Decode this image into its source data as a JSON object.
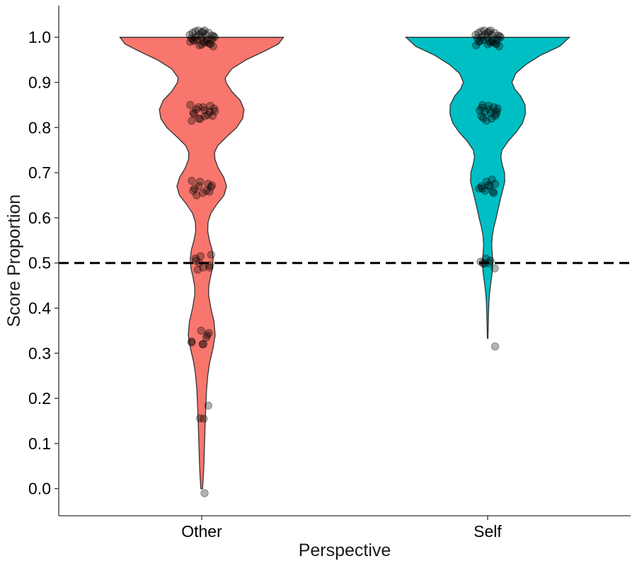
{
  "chart_data": {
    "type": "violin",
    "xlabel": "Perspective",
    "ylabel": "Score Proportion",
    "categories": [
      "Other",
      "Self"
    ],
    "ylim": [
      -0.06,
      1.07
    ],
    "yticks": [
      "0.0",
      "0.1",
      "0.2",
      "0.3",
      "0.4",
      "0.5",
      "0.6",
      "0.7",
      "0.8",
      "0.9",
      "1.0"
    ],
    "reference_line": {
      "y": 0.5,
      "style": "dashed",
      "color": "#000000"
    },
    "grid": false,
    "legend": "none",
    "series": [
      {
        "category": "Other",
        "color": "#F8766D",
        "y_range": [
          0.0,
          1.0
        ],
        "density_profile": [
          [
            0.0,
            0.003
          ],
          [
            0.03,
            0.006
          ],
          [
            0.06,
            0.008
          ],
          [
            0.1,
            0.01
          ],
          [
            0.14,
            0.012
          ],
          [
            0.18,
            0.014
          ],
          [
            0.22,
            0.017
          ],
          [
            0.25,
            0.021
          ],
          [
            0.28,
            0.028
          ],
          [
            0.31,
            0.039
          ],
          [
            0.34,
            0.047
          ],
          [
            0.37,
            0.043
          ],
          [
            0.4,
            0.032
          ],
          [
            0.43,
            0.024
          ],
          [
            0.45,
            0.025
          ],
          [
            0.47,
            0.031
          ],
          [
            0.49,
            0.038
          ],
          [
            0.51,
            0.04
          ],
          [
            0.53,
            0.036
          ],
          [
            0.55,
            0.027
          ],
          [
            0.57,
            0.021
          ],
          [
            0.59,
            0.022
          ],
          [
            0.61,
            0.032
          ],
          [
            0.63,
            0.053
          ],
          [
            0.65,
            0.078
          ],
          [
            0.67,
            0.087
          ],
          [
            0.69,
            0.077
          ],
          [
            0.71,
            0.058
          ],
          [
            0.73,
            0.046
          ],
          [
            0.745,
            0.045
          ],
          [
            0.76,
            0.056
          ],
          [
            0.78,
            0.088
          ],
          [
            0.8,
            0.122
          ],
          [
            0.82,
            0.143
          ],
          [
            0.84,
            0.148
          ],
          [
            0.86,
            0.135
          ],
          [
            0.88,
            0.105
          ],
          [
            0.9,
            0.085
          ],
          [
            0.91,
            0.082
          ],
          [
            0.93,
            0.105
          ],
          [
            0.95,
            0.155
          ],
          [
            0.97,
            0.222
          ],
          [
            0.985,
            0.268
          ],
          [
            1.0,
            0.286
          ]
        ],
        "points": [
          [
            -0.01,
            0.01
          ],
          [
            0.156,
            -0.006
          ],
          [
            0.155,
            0.007
          ],
          [
            0.184,
            0.023
          ],
          [
            0.326,
            -0.035
          ],
          [
            0.324,
            -0.036
          ],
          [
            0.32,
            0.003
          ],
          [
            0.32,
            0.006
          ],
          [
            0.335,
            0.016
          ],
          [
            0.34,
            0.02
          ],
          [
            0.345,
            0.025
          ],
          [
            0.35,
            -0.002
          ],
          [
            0.49,
            0.027
          ],
          [
            0.485,
            -0.014
          ],
          [
            0.49,
            0.005
          ],
          [
            0.495,
            0.028
          ],
          [
            0.5,
            -0.008
          ],
          [
            0.505,
            -0.02
          ],
          [
            0.51,
            -0.022
          ],
          [
            0.515,
            -0.004
          ],
          [
            0.518,
            0.033
          ],
          [
            0.65,
            -0.018
          ],
          [
            0.655,
            0.004
          ],
          [
            0.66,
            0.016
          ],
          [
            0.665,
            -0.025
          ],
          [
            0.67,
            -0.01
          ],
          [
            0.675,
            0.022
          ],
          [
            0.68,
            -0.006
          ],
          [
            0.682,
            -0.035
          ],
          [
            0.668,
            0.032
          ],
          [
            0.672,
            0.036
          ],
          [
            0.658,
            0.027
          ],
          [
            0.66,
            -0.03
          ],
          [
            0.815,
            -0.035
          ],
          [
            0.82,
            -0.01
          ],
          [
            0.825,
            0.011
          ],
          [
            0.83,
            -0.027
          ],
          [
            0.835,
            0.028
          ],
          [
            0.84,
            -0.019
          ],
          [
            0.845,
            0.005
          ],
          [
            0.85,
            -0.04
          ],
          [
            0.842,
            0.043
          ],
          [
            0.848,
            0.03
          ],
          [
            0.836,
            0.046
          ],
          [
            0.828,
            0.021
          ],
          [
            0.819,
            -0.005
          ],
          [
            0.833,
            -0.03
          ],
          [
            0.838,
            0.01
          ],
          [
            0.826,
            0.038
          ],
          [
            0.845,
            -0.012
          ],
          [
            0.99,
            -0.04
          ],
          [
            0.995,
            -0.03
          ],
          [
            1.0,
            -0.02
          ],
          [
            1.005,
            -0.01
          ],
          [
            1.01,
            0.0
          ],
          [
            1.015,
            0.01
          ],
          [
            0.99,
            0.02
          ],
          [
            0.985,
            0.03
          ],
          [
            0.98,
            0.04
          ],
          [
            0.995,
            0.035
          ],
          [
            1.0,
            0.045
          ],
          [
            1.005,
            -0.042
          ],
          [
            1.01,
            -0.032
          ],
          [
            1.015,
            -0.012
          ],
          [
            0.99,
            0.006
          ],
          [
            0.988,
            0.012
          ],
          [
            0.995,
            0.016
          ],
          [
            1.0,
            -0.002
          ],
          [
            1.01,
            0.024
          ],
          [
            1.013,
            -0.022
          ],
          [
            0.982,
            -0.008
          ],
          [
            0.986,
            0.028
          ],
          [
            0.992,
            -0.028
          ],
          [
            1.004,
            0.037
          ],
          [
            1.012,
            0.004
          ],
          [
            0.998,
            -0.036
          ],
          [
            1.006,
            0.014
          ],
          [
            0.994,
            -0.016
          ],
          [
            1.002,
            0.042
          ],
          [
            0.984,
            0.0
          ]
        ]
      },
      {
        "category": "Self",
        "color": "#00BFC4",
        "y_range": [
          0.333,
          1.0
        ],
        "density_profile": [
          [
            0.333,
            0.001
          ],
          [
            0.36,
            0.002
          ],
          [
            0.39,
            0.003
          ],
          [
            0.42,
            0.005
          ],
          [
            0.44,
            0.008
          ],
          [
            0.46,
            0.012
          ],
          [
            0.48,
            0.016
          ],
          [
            0.5,
            0.018
          ],
          [
            0.52,
            0.016
          ],
          [
            0.54,
            0.014
          ],
          [
            0.56,
            0.016
          ],
          [
            0.58,
            0.022
          ],
          [
            0.6,
            0.03
          ],
          [
            0.62,
            0.037
          ],
          [
            0.64,
            0.044
          ],
          [
            0.66,
            0.052
          ],
          [
            0.68,
            0.06
          ],
          [
            0.7,
            0.059
          ],
          [
            0.72,
            0.05
          ],
          [
            0.735,
            0.046
          ],
          [
            0.75,
            0.05
          ],
          [
            0.77,
            0.072
          ],
          [
            0.79,
            0.1
          ],
          [
            0.81,
            0.122
          ],
          [
            0.83,
            0.132
          ],
          [
            0.85,
            0.131
          ],
          [
            0.87,
            0.115
          ],
          [
            0.885,
            0.095
          ],
          [
            0.9,
            0.085
          ],
          [
            0.92,
            0.098
          ],
          [
            0.94,
            0.135
          ],
          [
            0.96,
            0.185
          ],
          [
            0.98,
            0.252
          ],
          [
            1.0,
            0.286
          ]
        ],
        "points": [
          [
            0.315,
            0.026
          ],
          [
            0.488,
            0.025
          ],
          [
            0.5,
            -0.017
          ],
          [
            0.503,
            -0.025
          ],
          [
            0.505,
            0.01
          ],
          [
            0.51,
            -0.006
          ],
          [
            0.498,
            -0.013
          ],
          [
            0.5,
            0.004
          ],
          [
            0.655,
            0.021
          ],
          [
            0.66,
            -0.009
          ],
          [
            0.665,
            -0.03
          ],
          [
            0.67,
            0.008
          ],
          [
            0.675,
            0.026
          ],
          [
            0.68,
            -0.004
          ],
          [
            0.685,
            0.015
          ],
          [
            0.665,
            -0.019
          ],
          [
            0.672,
            0.003
          ],
          [
            0.658,
            0.018
          ],
          [
            0.67,
            -0.022
          ],
          [
            0.815,
            -0.005
          ],
          [
            0.82,
            0.014
          ],
          [
            0.825,
            -0.022
          ],
          [
            0.83,
            0.03
          ],
          [
            0.835,
            -0.01
          ],
          [
            0.84,
            0.006
          ],
          [
            0.845,
            0.021
          ],
          [
            0.85,
            -0.018
          ],
          [
            0.842,
            0.035
          ],
          [
            0.838,
            -0.028
          ],
          [
            0.832,
            0.011
          ],
          [
            0.826,
            0.026
          ],
          [
            0.848,
            0.003
          ],
          [
            0.821,
            -0.015
          ],
          [
            0.836,
            0.032
          ],
          [
            0.844,
            -0.02
          ],
          [
            0.982,
            -0.04
          ],
          [
            0.99,
            -0.03
          ],
          [
            1.0,
            -0.02
          ],
          [
            1.005,
            -0.01
          ],
          [
            1.01,
            0.0
          ],
          [
            1.015,
            0.01
          ],
          [
            0.99,
            0.02
          ],
          [
            0.985,
            0.03
          ],
          [
            0.98,
            0.04
          ],
          [
            0.995,
            0.035
          ],
          [
            1.0,
            0.045
          ],
          [
            1.005,
            -0.042
          ],
          [
            1.01,
            -0.032
          ],
          [
            1.015,
            -0.012
          ],
          [
            0.99,
            0.006
          ],
          [
            0.988,
            0.012
          ],
          [
            0.995,
            0.016
          ],
          [
            1.0,
            -0.002
          ],
          [
            1.01,
            0.024
          ],
          [
            1.013,
            -0.022
          ],
          [
            0.986,
            0.028
          ],
          [
            0.992,
            -0.028
          ],
          [
            1.004,
            0.037
          ],
          [
            1.012,
            0.004
          ],
          [
            0.998,
            -0.036
          ],
          [
            1.006,
            0.014
          ],
          [
            0.994,
            -0.016
          ],
          [
            1.002,
            0.042
          ],
          [
            0.984,
            0.0
          ]
        ]
      }
    ]
  }
}
